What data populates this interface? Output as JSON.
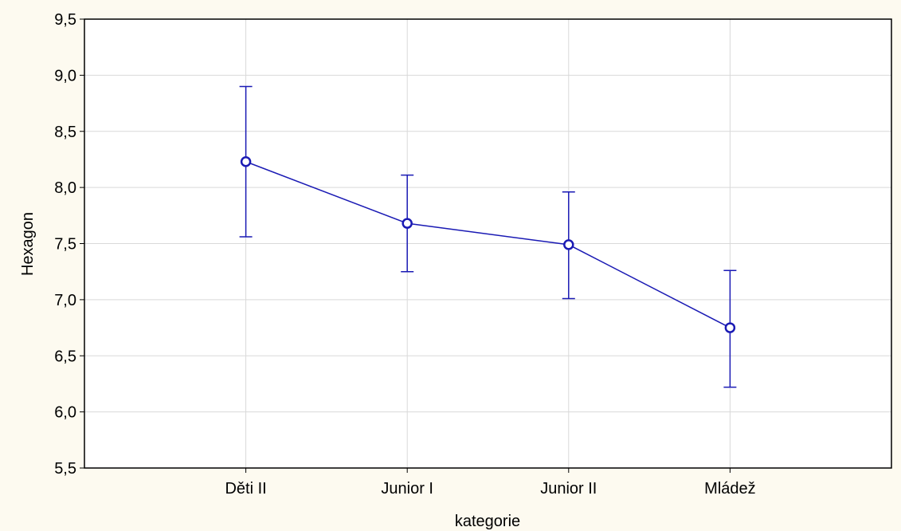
{
  "chart_data": {
    "type": "line",
    "title": "",
    "xlabel": "kategorie",
    "ylabel": "Hexagon",
    "categories": [
      "Děti II",
      "Junior I",
      "Junior II",
      "Mládež"
    ],
    "series": [
      {
        "values": [
          8.23,
          7.68,
          7.49,
          6.75
        ],
        "error_low": [
          7.56,
          7.25,
          7.01,
          6.22
        ],
        "error_high": [
          8.9,
          8.11,
          7.96,
          7.26
        ]
      }
    ],
    "ylim": [
      5.5,
      9.5
    ],
    "yticks": [
      5.5,
      6.0,
      6.5,
      7.0,
      7.5,
      8.0,
      8.5,
      9.0,
      9.5
    ],
    "ytick_labels": [
      "5,5",
      "6,0",
      "6,5",
      "7,0",
      "7,5",
      "8,0",
      "8,5",
      "9,0",
      "9,5"
    ],
    "grid": true,
    "series_color": "#1a1ab4",
    "grid_color": "#d9d9d9",
    "plot_background": "#ffffff",
    "page_background": "#fdfaf0"
  }
}
